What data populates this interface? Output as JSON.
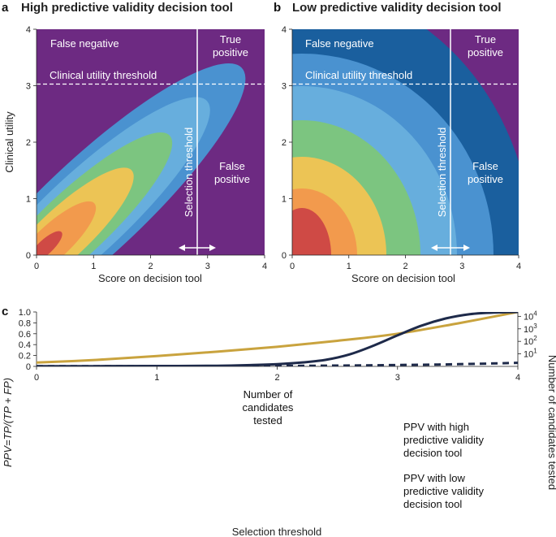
{
  "chart_data": [
    {
      "id": "a",
      "panel_letter": "a",
      "type": "contour",
      "title": "High predictive validity decision tool",
      "xlabel": "Score on decision tool",
      "ylabel": "Clinical utility",
      "xlim": [
        0,
        4
      ],
      "ylim": [
        0,
        4
      ],
      "xticks": [
        "0",
        "1",
        "2",
        "3",
        "4"
      ],
      "yticks": [
        "0",
        "1",
        "2",
        "3",
        "4"
      ],
      "selection_threshold_x": 2.8,
      "clinical_threshold_y": 3.0,
      "region_labels": {
        "false_negative": "False negative",
        "true_positive_1": "True",
        "true_positive_2": "positive",
        "false_positive_1": "False",
        "false_positive_2": "positive"
      },
      "threshold_labels": {
        "clinical": "Clinical utility threshold",
        "selection": "Selection threshold"
      },
      "background_color": "#6d2a82",
      "contour_colors": [
        "#4a92d0",
        "#67aedd",
        "#7cc580",
        "#ecc455",
        "#f29a4d",
        "#cf4a45"
      ]
    },
    {
      "id": "b",
      "panel_letter": "b",
      "type": "contour",
      "title": "Low predictive validity decision tool",
      "xlabel": "Score on decision tool",
      "ylabel": "",
      "xlim": [
        0,
        4
      ],
      "ylim": [
        0,
        4
      ],
      "xticks": [
        "0",
        "1",
        "2",
        "3",
        "4"
      ],
      "yticks": [
        "0",
        "1",
        "2",
        "3",
        "4"
      ],
      "selection_threshold_x": 2.8,
      "clinical_threshold_y": 3.0,
      "region_labels": {
        "false_negative": "False negative",
        "true_positive_1": "True",
        "true_positive_2": "positive",
        "false_positive_1": "False",
        "false_positive_2": "positive"
      },
      "threshold_labels": {
        "clinical": "Clinical utility threshold",
        "selection": "Selection threshold"
      },
      "background_color": "#6d2a82",
      "contour_colors": [
        "#1a5f9e",
        "#4a92d0",
        "#67aedd",
        "#7cc580",
        "#ecc455",
        "#f29a4d",
        "#cf4a45"
      ]
    },
    {
      "id": "c",
      "panel_letter": "c",
      "type": "line",
      "xlabel": "Selection threshold",
      "ylabel": "PPV=TP/(TP + FP)",
      "y2label": "Number of candidates tested",
      "xlim": [
        0,
        4
      ],
      "ylim": [
        0,
        1
      ],
      "xticks": [
        "0",
        "1",
        "2",
        "3",
        "4"
      ],
      "yticks": [
        "0",
        "0.2",
        "0.4",
        "0.6",
        "0.8",
        "1.0"
      ],
      "y2ticks": [
        {
          "base": "10",
          "exp": "1",
          "value": 0.23
        },
        {
          "base": "10",
          "exp": "2",
          "value": 0.46
        },
        {
          "base": "10",
          "exp": "3",
          "value": 0.69
        },
        {
          "base": "10",
          "exp": "4",
          "value": 0.92
        }
      ],
      "series": [
        {
          "name": "Number of candidates tested",
          "label_lines": [
            "Number of",
            "candidates",
            "tested"
          ],
          "color": "#c9a33e",
          "style": "solid",
          "x": [
            0,
            0.5,
            1,
            1.5,
            2,
            2.5,
            3,
            3.5,
            4
          ],
          "y": [
            0.07,
            0.12,
            0.19,
            0.27,
            0.36,
            0.47,
            0.6,
            0.79,
            1.0
          ]
        },
        {
          "name": "PPV with high predictive validity decision tool",
          "label_lines": [
            "PPV with high",
            "predictive validity",
            "decision tool"
          ],
          "color": "#1e2a4a",
          "style": "solid",
          "x": [
            0,
            0.5,
            1,
            1.5,
            1.8,
            2,
            2.2,
            2.4,
            2.6,
            2.8,
            3,
            3.2,
            3.4,
            3.6,
            3.8,
            4
          ],
          "y": [
            0.005,
            0.005,
            0.007,
            0.012,
            0.025,
            0.04,
            0.07,
            0.12,
            0.22,
            0.38,
            0.57,
            0.75,
            0.88,
            0.96,
            0.99,
            1.0
          ]
        },
        {
          "name": "PPV with low predictive validity decision tool",
          "label_lines": [
            "PPV with low",
            "predictive validity",
            "decision tool"
          ],
          "color": "#1e2a4a",
          "style": "dashed",
          "x": [
            0,
            1,
            1.5,
            2,
            2.5,
            3,
            3.5,
            4
          ],
          "y": [
            0.003,
            0.004,
            0.005,
            0.008,
            0.015,
            0.025,
            0.04,
            0.065
          ]
        }
      ]
    }
  ]
}
